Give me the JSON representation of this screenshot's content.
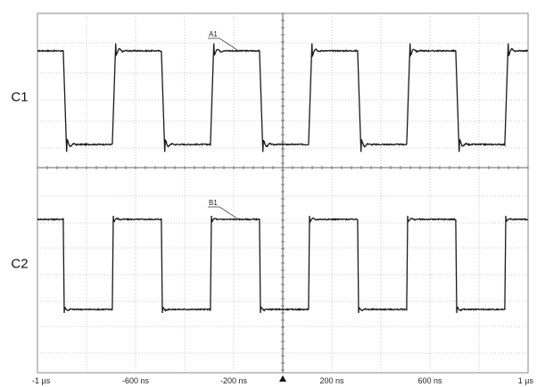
{
  "chart_data": {
    "type": "line",
    "channels": [
      {
        "channel": "C1",
        "label": "C1",
        "annotation": "A1",
        "annotation_time_ns": -280,
        "high": 1.0,
        "low": 0.0,
        "period_ns": 400,
        "first_fall_ns": -895,
        "edge_ns": 14,
        "ringing": "moderate"
      },
      {
        "channel": "C2",
        "label": "C2",
        "annotation": "B1",
        "annotation_time_ns": -280,
        "high": 1.0,
        "low": 0.0,
        "period_ns": 400,
        "first_fall_ns": -895,
        "edge_ns": 4,
        "ringing": "slight"
      }
    ],
    "x_range_ns": [
      -1000,
      1000
    ],
    "x_ticks": [
      {
        "value": -1000,
        "label": "-1 µs"
      },
      {
        "value": -600,
        "label": "-600 ns"
      },
      {
        "value": -200,
        "label": "-200 ns"
      },
      {
        "value": 200,
        "label": "200 ns"
      },
      {
        "value": 600,
        "label": "600 ns"
      },
      {
        "value": 1000,
        "label": "1 µs"
      }
    ],
    "x_divisions": 10,
    "grid": true,
    "grid_style": "dotted",
    "trigger_marker": "triangle",
    "trigger_time_ns": 0
  }
}
